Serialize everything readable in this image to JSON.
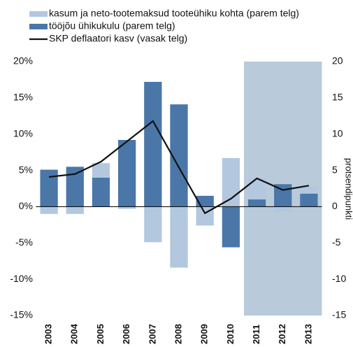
{
  "chart_data": {
    "type": "bar-line",
    "categories": [
      "2003",
      "2004",
      "2005",
      "2006",
      "2007",
      "2008",
      "2009",
      "2010",
      "2011",
      "2012",
      "2013"
    ],
    "series": [
      {
        "name": "tööjõu ühikukulu (parem telg)",
        "type": "bar",
        "axis": "y2",
        "color": "#4a77a8",
        "values": [
          5.1,
          5.5,
          4.0,
          9.2,
          17.2,
          14.1,
          1.5,
          -5.6,
          1.0,
          3.1,
          1.8
        ]
      },
      {
        "name": "kasum ja neto-tootemaksud tooteühiku kohta (parem telg)",
        "type": "bar",
        "axis": "y2",
        "color": "#b3c8df",
        "values": [
          -1.0,
          -1.0,
          2.0,
          -0.3,
          -4.9,
          -8.4,
          -2.6,
          6.7,
          3.0,
          -0.7,
          1.0
        ]
      },
      {
        "name": "SKP deflaatori kasv (vasak telg)",
        "type": "line",
        "color": "#111111",
        "values": [
          4.1,
          4.5,
          6.2,
          9.0,
          11.8,
          5.4,
          -0.9,
          1.1,
          3.9,
          2.3,
          2.9
        ]
      }
    ],
    "legend_order": [
      1,
      0,
      2
    ],
    "ylim": [
      -15,
      20
    ],
    "yticks": [
      {
        "value": -15,
        "label": "-15%"
      },
      {
        "value": -10,
        "label": "-10%"
      },
      {
        "value": -5,
        "label": "-5%"
      },
      {
        "value": 0,
        "label": "0%"
      },
      {
        "value": 5,
        "label": "5%"
      },
      {
        "value": 10,
        "label": "10%"
      },
      {
        "value": 15,
        "label": "15%"
      },
      {
        "value": 20,
        "label": "20%"
      }
    ],
    "y2lim": [
      -15,
      20
    ],
    "y2ticks": [
      -15,
      -10,
      -5,
      0,
      5,
      10,
      15,
      20
    ],
    "y2label": "protsendipunkti",
    "shaded_range": [
      8,
      10
    ],
    "shade_color": "#b9cbdb"
  }
}
